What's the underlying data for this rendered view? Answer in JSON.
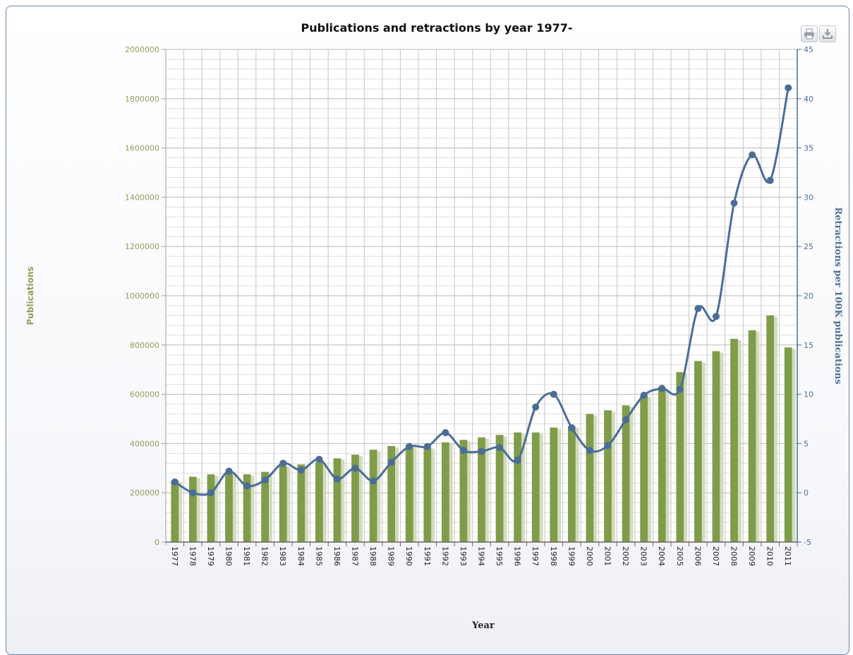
{
  "chart_data": {
    "type": "bar",
    "title": "Publications and retractions by year 1977-",
    "xlabel": "Year",
    "ylabel_left": "Publications",
    "ylabel_right": "Retractions per 100K publications",
    "y_left_range": [
      0,
      2000000
    ],
    "y_left_ticks": [
      "0",
      "200000",
      "400000",
      "600000",
      "800000",
      "1000000",
      "1200000",
      "1400000",
      "1600000",
      "1800000",
      "2000000"
    ],
    "y_right_range": [
      -5,
      45
    ],
    "y_right_ticks": [
      "-5",
      "0",
      "5",
      "10",
      "15",
      "20",
      "25",
      "30",
      "35",
      "40",
      "45"
    ],
    "grid": true,
    "categories": [
      "1977",
      "1978",
      "1979",
      "1980",
      "1981",
      "1982",
      "1983",
      "1984",
      "1985",
      "1986",
      "1987",
      "1988",
      "1989",
      "1990",
      "1991",
      "1992",
      "1993",
      "1994",
      "1995",
      "1996",
      "1997",
      "1998",
      "1999",
      "2000",
      "2001",
      "2002",
      "2003",
      "2004",
      "2005",
      "2006",
      "2007",
      "2008",
      "2009",
      "2010",
      "2011"
    ],
    "series": [
      {
        "type": "bar",
        "axis": "left",
        "values": [
          250000,
          265000,
          275000,
          280000,
          275000,
          285000,
          310000,
          315000,
          325000,
          340000,
          355000,
          375000,
          390000,
          395000,
          385000,
          405000,
          415000,
          425000,
          435000,
          445000,
          445000,
          465000,
          470000,
          520000,
          535000,
          555000,
          595000,
          625000,
          690000,
          735000,
          775000,
          825000,
          860000,
          920000,
          790000
        ]
      },
      {
        "type": "line",
        "axis": "right",
        "values": [
          1.1,
          0.0,
          0.0,
          2.2,
          0.7,
          1.3,
          3.0,
          2.3,
          3.4,
          1.4,
          2.5,
          1.2,
          3.1,
          4.7,
          4.7,
          6.1,
          4.3,
          4.2,
          4.6,
          3.3,
          8.7,
          10.0,
          6.6,
          4.3,
          4.8,
          7.4,
          9.9,
          10.6,
          10.5,
          18.7,
          17.9,
          29.4,
          34.3,
          31.7,
          41.1
        ]
      }
    ]
  },
  "colors": {
    "bar": "#7f9c4a",
    "bar_shadow": "#d3dcc0",
    "line": "#4a6d98",
    "left_axis_text": "#9a9a5c",
    "right_axis_text": "#4f6f95",
    "grid": "#c8c8c8",
    "title": "#111111"
  },
  "toolbar": {
    "print_icon": "printer-icon",
    "download_icon": "download-icon"
  }
}
